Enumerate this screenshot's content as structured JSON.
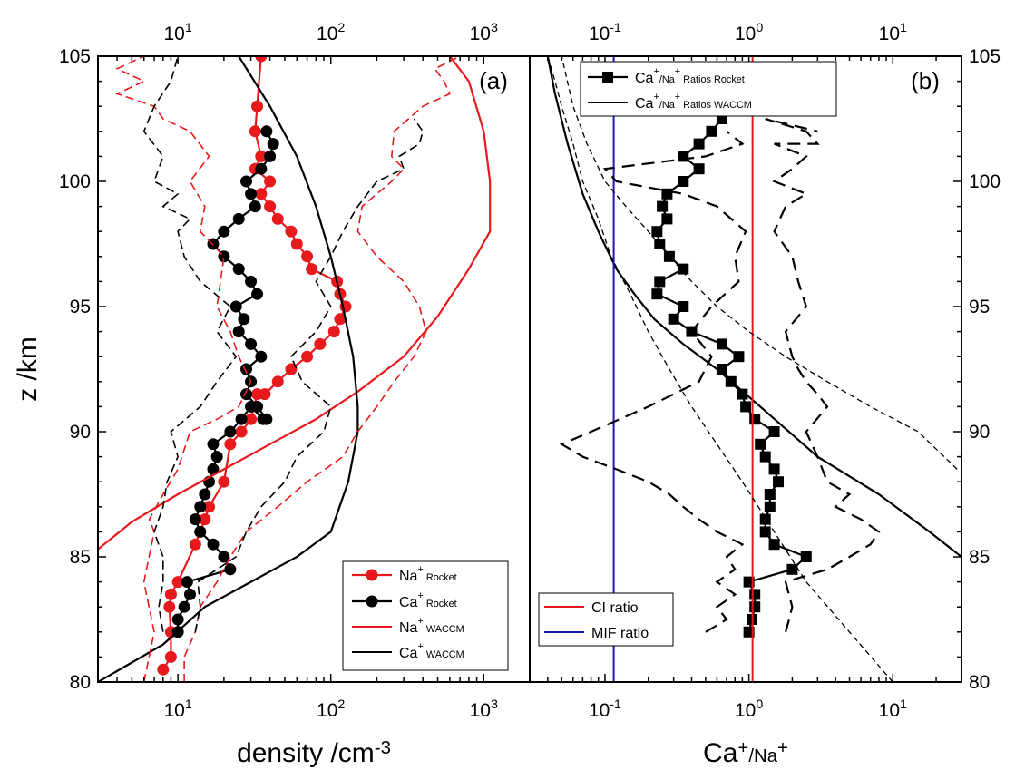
{
  "chart_data": [
    {
      "type": "line",
      "panel_label": "(a)",
      "xlabel": "density /cm",
      "xlabel_sup": "-3",
      "ylabel": "z /km",
      "xscale": "log",
      "xlim": [
        3,
        2000
      ],
      "ylim": [
        80,
        105
      ],
      "x_ticks": [
        10,
        100,
        1000
      ],
      "x_tick_labels": [
        {
          "base": "10",
          "exp": "1"
        },
        {
          "base": "10",
          "exp": "2"
        },
        {
          "base": "10",
          "exp": "3"
        }
      ],
      "y_ticks": [
        80,
        85,
        90,
        95,
        100,
        105
      ],
      "legend_position": "bottom-right",
      "series": [
        {
          "name": "Na",
          "name_sup": "+",
          "name_suffix": " Rocket",
          "color": "#e8191c",
          "style": "line-marker",
          "x": [
            8,
            9,
            9,
            8.8,
            9,
            10,
            13,
            14,
            15,
            16,
            20,
            22,
            26,
            30,
            33,
            37,
            45,
            55,
            70,
            85,
            105,
            115,
            125,
            115,
            110,
            75,
            70,
            60,
            55,
            45,
            40,
            35,
            40,
            32,
            35,
            32,
            33,
            35
          ],
          "y": [
            80.5,
            81,
            82,
            83,
            83.5,
            84,
            85.5,
            86,
            86.5,
            87,
            88,
            89.5,
            90,
            90.5,
            91.5,
            91.5,
            92,
            92.5,
            93,
            93.5,
            94,
            94.5,
            95,
            95.5,
            96,
            96.5,
            97,
            97.5,
            98,
            98.5,
            99,
            99.5,
            100,
            100.5,
            101,
            102,
            103,
            105
          ]
        },
        {
          "name": "Ca",
          "name_sup": "+",
          "name_suffix": " Rocket",
          "color": "#000000",
          "style": "line-marker",
          "x": [
            10,
            10,
            11,
            12,
            11.5,
            22,
            20,
            17,
            14,
            13,
            14,
            15,
            16,
            17,
            18,
            17,
            22,
            26,
            30,
            36,
            38,
            33,
            28,
            30,
            28,
            35,
            30,
            25,
            27,
            24,
            33,
            30,
            25,
            20,
            17,
            20,
            25,
            32,
            30,
            28,
            35,
            40,
            42,
            38
          ],
          "y": [
            82,
            82.5,
            83,
            83.5,
            84,
            84.5,
            85,
            85.5,
            86,
            86.5,
            87,
            87.5,
            88,
            88.5,
            89,
            89.5,
            90,
            90.5,
            91,
            90.5,
            90.5,
            91,
            91.5,
            92,
            92.5,
            93,
            93.5,
            94,
            94.5,
            95,
            95.5,
            96,
            96.5,
            97,
            97.5,
            98,
            98.5,
            99,
            99.5,
            100,
            100.5,
            101,
            101.5,
            102
          ]
        },
        {
          "name": "Na",
          "name_sup": "+",
          "name_suffix": " WACCM",
          "color": "#e8191c",
          "style": "line",
          "x": [
            3,
            5,
            10,
            20,
            40,
            80,
            150,
            300,
            500,
            800,
            1100,
            1100,
            1000,
            800,
            600
          ],
          "y": [
            85.3,
            86.4,
            87.5,
            88.5,
            89.5,
            90.5,
            91.6,
            93,
            94.6,
            96.5,
            98,
            100,
            102,
            104,
            105
          ]
        },
        {
          "name": "Ca",
          "name_sup": "+",
          "name_suffix": " WACCM",
          "color": "#000000",
          "style": "line",
          "x": [
            3,
            8,
            15,
            30,
            60,
            100,
            130,
            150,
            150,
            140,
            120,
            100,
            80,
            60,
            40,
            25
          ],
          "y": [
            80,
            81.5,
            83,
            84,
            85,
            86,
            88,
            90,
            91,
            93,
            95,
            97,
            99,
            101,
            103,
            105
          ]
        },
        {
          "name": "",
          "color": "#e8191c",
          "style": "dashed",
          "x": [
            6,
            7,
            6,
            7,
            6.5,
            8,
            10,
            12,
            18,
            25,
            30,
            25,
            22,
            18,
            20,
            14,
            15,
            12,
            16,
            12,
            8,
            7,
            4,
            6,
            4,
            6
          ],
          "y": [
            80,
            82,
            84,
            86,
            86.5,
            87.5,
            88.5,
            90,
            90.5,
            91,
            92,
            93,
            94,
            95,
            97,
            98,
            99,
            100,
            101,
            102,
            102.5,
            103,
            103.5,
            104,
            104.5,
            105
          ]
        },
        {
          "name": "",
          "color": "#e8191c",
          "style": "dashed",
          "x": [
            11,
            11,
            13,
            14,
            18,
            22,
            28,
            45,
            70,
            120,
            150,
            200,
            260,
            350,
            420,
            380,
            300,
            200,
            150,
            160,
            250,
            300,
            250,
            260,
            400,
            600,
            550,
            480,
            700
          ],
          "y": [
            80,
            81,
            82,
            83,
            84,
            85,
            86,
            87,
            88,
            89,
            90,
            91,
            92,
            93,
            94,
            95,
            96,
            97,
            98,
            99,
            100,
            100.5,
            101,
            102,
            103,
            103.5,
            104,
            104.5,
            105
          ]
        },
        {
          "name": "",
          "color": "#000000",
          "style": "dashed",
          "x": [
            8,
            7.5,
            8,
            8,
            7,
            8,
            8.5,
            10,
            9,
            14,
            18,
            24,
            18,
            22,
            14,
            11,
            10,
            12,
            8,
            10,
            7,
            8,
            6,
            7,
            9,
            10
          ],
          "y": [
            82,
            83,
            84,
            85,
            86,
            87,
            88,
            89,
            90,
            91,
            92,
            93,
            94,
            95,
            96,
            97,
            98,
            98.5,
            99,
            99.5,
            100,
            101,
            102,
            103,
            104,
            105
          ]
        },
        {
          "name": "",
          "color": "#000000",
          "style": "dashed",
          "x": [
            13,
            14,
            13.5,
            24,
            28,
            35,
            50,
            60,
            90,
            100,
            65,
            55,
            80,
            100,
            80,
            100,
            120,
            150,
            200,
            300,
            280,
            380,
            400,
            350
          ],
          "y": [
            82,
            83,
            84,
            85,
            86,
            87,
            88,
            89,
            90,
            91,
            92,
            93,
            94,
            95,
            96,
            97,
            98,
            99,
            100,
            100.5,
            101,
            101.5,
            102,
            102.5
          ]
        }
      ]
    },
    {
      "type": "line",
      "panel_label": "(b)",
      "xlabel": "Ca",
      "xlabel_sup": "+",
      "xlabel_suffix": "/Na",
      "xlabel_sup2": "+",
      "ylabel": "",
      "xscale": "log",
      "xlim": [
        0.03,
        30
      ],
      "ylim": [
        80,
        105
      ],
      "x_ticks": [
        0.1,
        1,
        10
      ],
      "x_tick_labels": [
        {
          "base": "10",
          "exp": "-1"
        },
        {
          "base": "10",
          "exp": "0"
        },
        {
          "base": "10",
          "exp": "1"
        }
      ],
      "y_ticks": [
        80,
        85,
        90,
        95,
        100,
        105
      ],
      "legend_position": "top",
      "legend2_position": "bottom-left",
      "series": [
        {
          "name": "Ca",
          "name_sup": "+",
          "name_mid": "/Na",
          "name_sup2": "+",
          "name_suffix": " Ratios Rocket",
          "color": "#000000",
          "style": "line-marker",
          "x": [
            1.0,
            1.05,
            1.1,
            1.1,
            1.0,
            2.0,
            2.5,
            1.5,
            1.3,
            1.3,
            1.4,
            1.4,
            1.6,
            1.5,
            1.3,
            1.2,
            1.5,
            1.1,
            0.95,
            0.9,
            0.75,
            0.65,
            0.85,
            0.65,
            0.4,
            0.3,
            0.35,
            0.23,
            0.24,
            0.35,
            0.28,
            0.24,
            0.23,
            0.27,
            0.25,
            0.27,
            0.35,
            0.45,
            0.35,
            0.45,
            0.55,
            0.65,
            0.8,
            0.95
          ],
          "y": [
            82,
            82.5,
            83,
            83.5,
            84,
            84.5,
            85,
            85.5,
            86,
            86.5,
            87,
            87.5,
            88,
            88.5,
            89,
            89.5,
            90,
            90.5,
            91,
            91.5,
            92,
            92.5,
            93,
            93.5,
            94,
            94.5,
            95,
            95.5,
            96,
            96.5,
            97,
            97.5,
            98,
            98.5,
            99,
            99.5,
            100,
            100.5,
            101,
            101.5,
            102,
            102.5,
            103,
            103.5
          ]
        },
        {
          "name": "Ca",
          "name_sup": "+",
          "name_mid": "/Na",
          "name_sup2": "+",
          "name_suffix": " Ratios WACCM",
          "color": "#000000",
          "style": "line",
          "x": [
            30,
            18,
            8,
            3,
            1.2,
            0.6,
            0.35,
            0.22,
            0.16,
            0.12,
            0.09,
            0.07,
            0.055,
            0.045,
            0.04
          ],
          "y": [
            85,
            86,
            87.5,
            89,
            91,
            92.5,
            93.5,
            94.5,
            95.5,
            96.5,
            98,
            99.5,
            101.5,
            103.5,
            105
          ]
        },
        {
          "name": "CI ratio",
          "color": "#e8191c",
          "style": "vline",
          "x_value": 1.06
        },
        {
          "name": "MIF ratio",
          "color": "#1a1aaa",
          "style": "vline",
          "x_value": 0.115
        },
        {
          "name": "",
          "color": "#000000",
          "style": "dashed-thin",
          "x": [
            10,
            5,
            2.5,
            1.5,
            0.9,
            0.6,
            0.4,
            0.28,
            0.2,
            0.15,
            0.11,
            0.09,
            0.07,
            0.06,
            0.05,
            0.045,
            0.04
          ],
          "y": [
            80,
            82,
            84,
            86,
            88,
            89.5,
            91,
            92.5,
            94,
            95.5,
            97,
            98.5,
            100,
            101.5,
            103,
            104,
            105
          ]
        },
        {
          "name": "",
          "color": "#000000",
          "style": "dashed-thin",
          "x": [
            28,
            15,
            7,
            3.5,
            1.8,
            1.0,
            0.6,
            0.4,
            0.28,
            0.2,
            0.14,
            0.1,
            0.075,
            0.06,
            0.05
          ],
          "y": [
            88.5,
            90,
            91,
            92,
            93,
            94,
            95,
            96,
            97,
            98,
            99,
            100,
            101.5,
            103,
            105
          ]
        },
        {
          "name": "",
          "color": "#000000",
          "style": "dashed",
          "x": [
            0.5,
            0.7,
            0.6,
            0.8,
            0.6,
            0.8,
            0.7,
            0.9,
            0.6,
            0.45,
            0.35,
            0.28,
            0.2,
            0.12,
            0.07,
            0.05,
            0.08,
            0.2,
            0.45,
            0.55,
            0.4,
            0.55,
            0.85,
            0.8,
            0.95,
            0.6,
            0.35,
            0.12,
            0.1,
            0.5,
            0.9,
            0.7
          ],
          "y": [
            82,
            82.5,
            83,
            83.5,
            84,
            84.5,
            85,
            85.5,
            86,
            86.5,
            87,
            87.5,
            88,
            88.5,
            89,
            89.5,
            90,
            91,
            92,
            93,
            94,
            95,
            96,
            97,
            98,
            99,
            99.5,
            100,
            100.5,
            101,
            101.5,
            102
          ]
        },
        {
          "name": "",
          "color": "#000000",
          "style": "dashed",
          "x": [
            1.8,
            1.9,
            2.0,
            1.8,
            3.5,
            5,
            7,
            8,
            6,
            4,
            5,
            3.5,
            3,
            2.5,
            3.5,
            3,
            2.5,
            2.2,
            2,
            1.8,
            2.5,
            2.2,
            2,
            1.5,
            1.8,
            2.5,
            1.5,
            2,
            2.5,
            1.5,
            3,
            2.5,
            1.3,
            3
          ],
          "y": [
            82,
            82.5,
            83,
            84,
            84.5,
            85,
            85.5,
            86,
            86.5,
            87,
            87.5,
            88,
            89,
            90,
            91,
            91.5,
            92,
            92.5,
            93,
            94,
            95,
            96,
            97,
            98,
            99,
            99.5,
            100,
            100.5,
            101,
            101.5,
            101.5,
            102,
            102.5,
            102
          ]
        }
      ]
    }
  ]
}
